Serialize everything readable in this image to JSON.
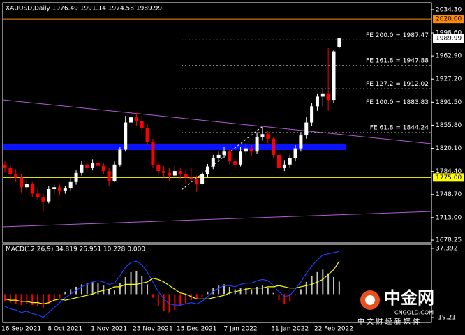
{
  "chart_data": {
    "type": "candlestick",
    "header": "XAUUSD,Daily  1976.49 1991.14 1974.58 1989.99",
    "categories": [
      null,
      null,
      null,
      "16 Sep 2021",
      null,
      null,
      null,
      null,
      null,
      null,
      null,
      "8 Oct 2021",
      null,
      null,
      null,
      null,
      null,
      null,
      null,
      "1 Nov 2021",
      null,
      null,
      null,
      null,
      null,
      null,
      null,
      "23 Nov 2021",
      null,
      null,
      null,
      null,
      null,
      null,
      null,
      "15 Dec 2021",
      null,
      null,
      null,
      null,
      null,
      null,
      null,
      "7 Jan 2022",
      null,
      null,
      null,
      null,
      null,
      null,
      null,
      null,
      "31 Jan 2022",
      null,
      null,
      null,
      null,
      null,
      null,
      null,
      "22 Feb 2022",
      null
    ],
    "ohlc": [
      [
        1795,
        1800,
        1782,
        1790
      ],
      [
        1790,
        1795,
        1772,
        1780
      ],
      [
        1780,
        1788,
        1768,
        1775
      ],
      [
        1775,
        1780,
        1752,
        1760
      ],
      [
        1760,
        1772,
        1755,
        1765
      ],
      [
        1765,
        1768,
        1745,
        1750
      ],
      [
        1750,
        1760,
        1740,
        1745
      ],
      [
        1745,
        1750,
        1722,
        1738
      ],
      [
        1738,
        1762,
        1735,
        1757
      ],
      [
        1757,
        1766,
        1750,
        1760
      ],
      [
        1760,
        1764,
        1748,
        1755
      ],
      [
        1755,
        1762,
        1750,
        1758
      ],
      [
        1758,
        1775,
        1755,
        1768
      ],
      [
        1768,
        1786,
        1764,
        1782
      ],
      [
        1782,
        1800,
        1778,
        1795
      ],
      [
        1795,
        1800,
        1785,
        1790
      ],
      [
        1790,
        1803,
        1786,
        1798
      ],
      [
        1798,
        1802,
        1788,
        1793
      ],
      [
        1793,
        1797,
        1780,
        1785
      ],
      [
        1785,
        1790,
        1762,
        1770
      ],
      [
        1770,
        1800,
        1768,
        1795
      ],
      [
        1795,
        1822,
        1792,
        1818
      ],
      [
        1818,
        1870,
        1815,
        1860
      ],
      [
        1860,
        1877,
        1852,
        1868
      ],
      [
        1868,
        1875,
        1855,
        1862
      ],
      [
        1862,
        1870,
        1845,
        1852
      ],
      [
        1852,
        1858,
        1825,
        1830
      ],
      [
        1830,
        1835,
        1790,
        1795
      ],
      [
        1795,
        1800,
        1778,
        1785
      ],
      [
        1785,
        1793,
        1775,
        1782
      ],
      [
        1782,
        1790,
        1770,
        1778
      ],
      [
        1778,
        1792,
        1775,
        1785
      ],
      [
        1785,
        1790,
        1772,
        1780
      ],
      [
        1780,
        1788,
        1765,
        1775
      ],
      [
        1775,
        1790,
        1768,
        1772
      ],
      [
        1772,
        1778,
        1753,
        1765
      ],
      [
        1765,
        1785,
        1762,
        1780
      ],
      [
        1780,
        1796,
        1776,
        1792
      ],
      [
        1792,
        1810,
        1788,
        1805
      ],
      [
        1805,
        1815,
        1800,
        1810
      ],
      [
        1810,
        1822,
        1805,
        1815
      ],
      [
        1815,
        1818,
        1795,
        1800
      ],
      [
        1800,
        1805,
        1788,
        1795
      ],
      [
        1795,
        1822,
        1792,
        1815
      ],
      [
        1815,
        1828,
        1810,
        1820
      ],
      [
        1820,
        1825,
        1808,
        1815
      ],
      [
        1815,
        1845,
        1812,
        1838
      ],
      [
        1838,
        1853,
        1832,
        1842
      ],
      [
        1842,
        1848,
        1828,
        1835
      ],
      [
        1835,
        1838,
        1805,
        1810
      ],
      [
        1810,
        1815,
        1782,
        1790
      ],
      [
        1790,
        1802,
        1785,
        1795
      ],
      [
        1795,
        1810,
        1790,
        1805
      ],
      [
        1805,
        1825,
        1800,
        1820
      ],
      [
        1820,
        1845,
        1815,
        1840
      ],
      [
        1840,
        1868,
        1835,
        1860
      ],
      [
        1860,
        1890,
        1855,
        1885
      ],
      [
        1885,
        1905,
        1878,
        1900
      ],
      [
        1900,
        1912,
        1885,
        1905
      ],
      [
        1905,
        1975,
        1878,
        1895
      ],
      [
        1895,
        1972,
        1890,
        1970
      ],
      [
        1976.49,
        1991.14,
        1974.58,
        1989.99
      ]
    ],
    "up_color": "#ffffff",
    "down_color": "#ff0000",
    "ylim": [
      1674,
      2045
    ],
    "yticks": [
      {
        "value": 2034.3,
        "label": "2034.30"
      },
      {
        "value": 1998.6,
        "label": "1998.60"
      },
      {
        "value": 1962.9,
        "label": "1962.90"
      },
      {
        "value": 1927.2,
        "label": "1927.20"
      },
      {
        "value": 1891.5,
        "label": "1891.50"
      },
      {
        "value": 1855.8,
        "label": "1855.80"
      },
      {
        "value": 1820.1,
        "label": "1820.10"
      },
      {
        "value": 1784.4,
        "label": "1784.40"
      },
      {
        "value": 1748.7,
        "label": "1748.70"
      },
      {
        "value": 1713,
        "label": "1713.00"
      },
      {
        "value": 1678.25,
        "label": "1678.25"
      }
    ],
    "horizontal_lines": [
      {
        "value": 2020,
        "label": "2020.00",
        "color": "#ff8c00"
      },
      {
        "value": 1775,
        "label": "1775.00",
        "color": "#ffff00"
      }
    ],
    "price_tag": {
      "value": 1989.99,
      "label": "1989.99"
    },
    "fe_levels": [
      {
        "value": 1987.47,
        "label": "FE 200.0 = 1987.47"
      },
      {
        "value": 1947.88,
        "label": "FE 161.8 = 1947.88"
      },
      {
        "value": 1912.02,
        "label": "FE 127.2 = 1912.02"
      },
      {
        "value": 1883.83,
        "label": "FE 100.0 = 1883.83"
      },
      {
        "value": 1844.24,
        "label": "FE 61.8 = 1844.24"
      }
    ],
    "macd": {
      "title": "MACD(12,26,9) 34.819 26.951 10.228 0.000",
      "ylim": [
        -23.2,
        40.8
      ],
      "yticks": [
        37.392,
        -19.21
      ],
      "histogram": {
        "pos_color": "#c0c0c0",
        "neg_color": "#ff0000",
        "values": [
          -6,
          -7,
          -8,
          -9,
          -8,
          -9,
          -10,
          -11,
          -8,
          -6,
          -3,
          2,
          4,
          6,
          8,
          9,
          10,
          9,
          7,
          4,
          3,
          9,
          14,
          18,
          19,
          15,
          8,
          -3,
          -10,
          -14,
          -15,
          -13,
          -10,
          -8,
          -5,
          -4,
          -2,
          2,
          5,
          7,
          8,
          6,
          4,
          5,
          5,
          4,
          6,
          7,
          5,
          1,
          -5,
          -8,
          -6,
          -1,
          4,
          10,
          15,
          18,
          20,
          17,
          14,
          10.228
        ]
      },
      "series": [
        {
          "color": "#1e3cff",
          "values": [
            -10,
            -12,
            -13,
            -15,
            -14,
            -16,
            -17,
            -19,
            -15,
            -11,
            -7,
            -3,
            0,
            3,
            6,
            8,
            10,
            11,
            10,
            8,
            9,
            15,
            22,
            26,
            27,
            24,
            18,
            10,
            2,
            -4,
            -8,
            -9,
            -9,
            -8,
            -7,
            -8,
            -6,
            -2,
            2,
            5,
            7,
            7,
            6,
            8,
            9,
            9,
            11,
            12,
            11,
            7,
            2,
            -2,
            -1,
            4,
            10,
            17,
            23,
            28,
            32,
            33,
            34,
            34.819
          ]
        },
        {
          "color": "#ffff00",
          "values": [
            -4,
            -5,
            -5,
            -6,
            -6,
            -7,
            -7,
            -8,
            -7,
            -5,
            -4,
            -5,
            -4,
            -3,
            -2,
            -1,
            0,
            2,
            3,
            4,
            6,
            6,
            8,
            8,
            8,
            9,
            10,
            13,
            12,
            10,
            7,
            4,
            1,
            0,
            -2,
            -4,
            -4,
            -4,
            -3,
            -2,
            -1,
            1,
            2,
            3,
            4,
            5,
            5,
            5,
            6,
            6,
            7,
            6,
            5,
            5,
            6,
            7,
            8,
            10,
            12,
            16,
            20,
            26.951
          ]
        }
      ]
    },
    "watermark": {
      "name": "中金网",
      "site": "CNGOLD.COM",
      "slogan": "中 文 财 经 新 媒 体"
    }
  }
}
